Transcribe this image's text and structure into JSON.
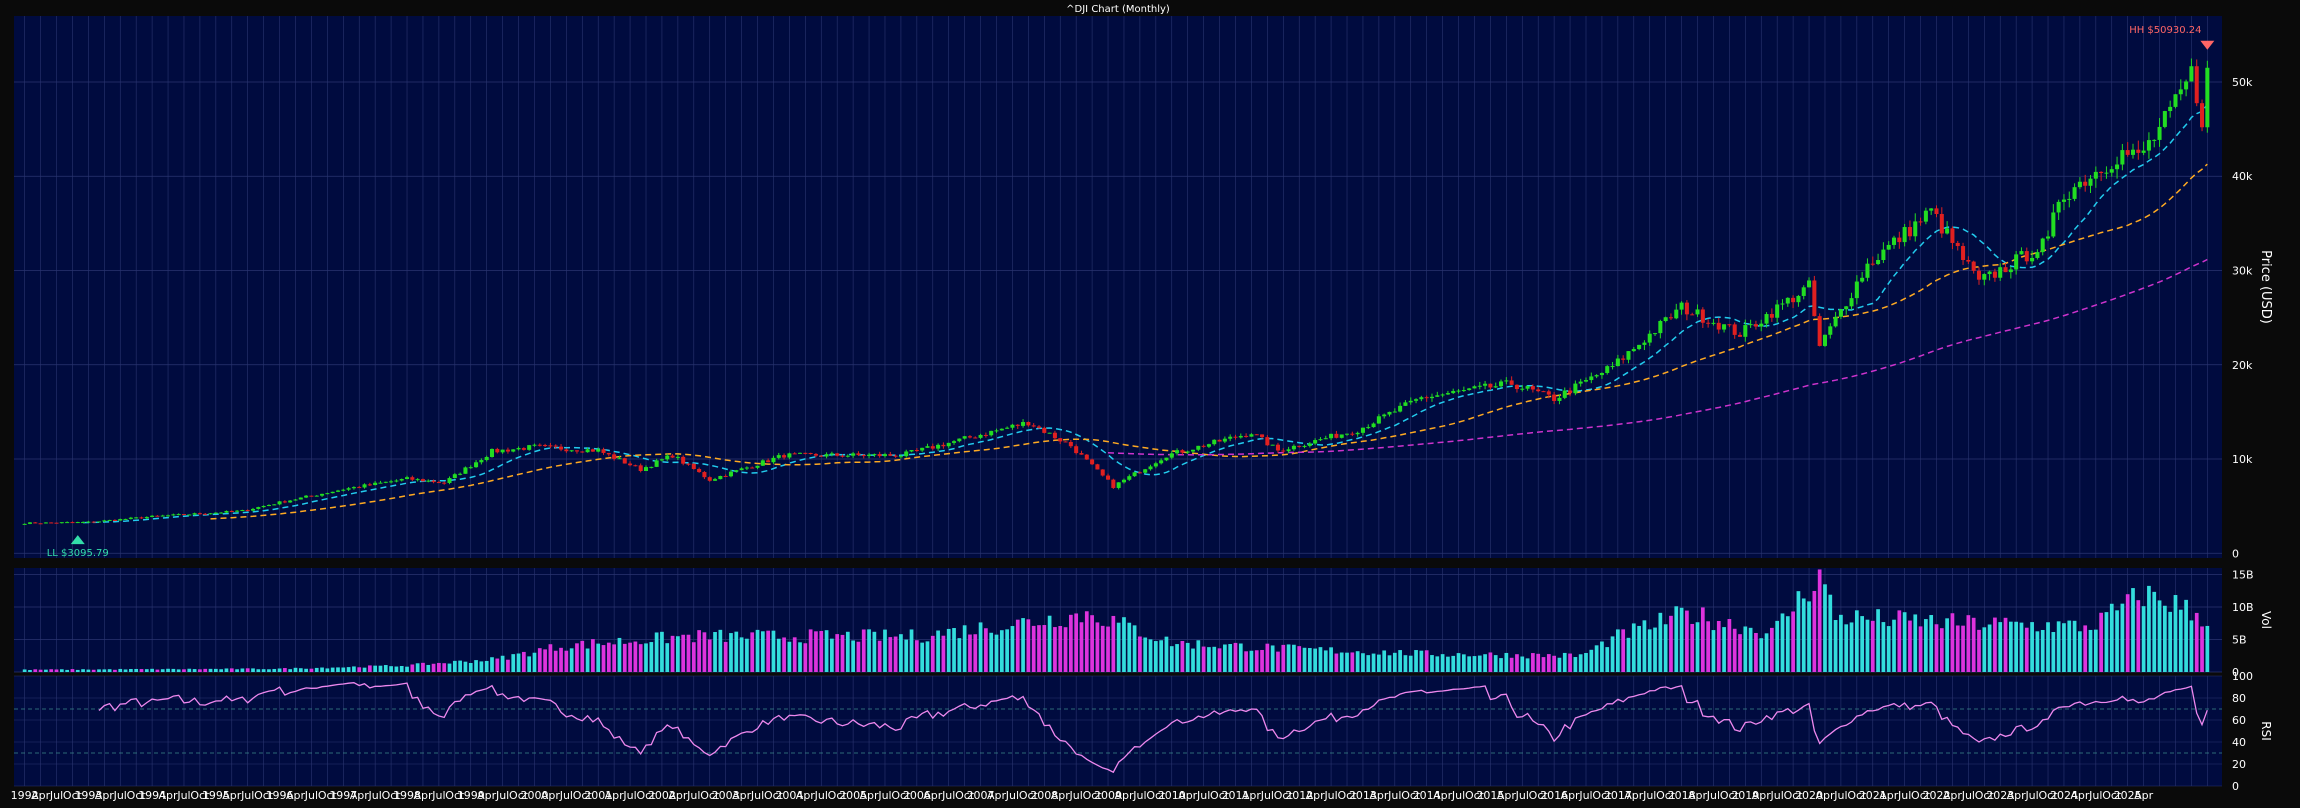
{
  "title": "^DJI Chart (Monthly)",
  "colors": {
    "background": "#0a0a0a",
    "panel": "#000b3f",
    "grid": "#2a3570",
    "up": "#22dd22",
    "down": "#e02020",
    "ma_short": "#22ccee",
    "ma_mid": "#ffaa22",
    "ma_long": "#cc33cc",
    "vol_up": "#33dddd",
    "vol_down": "#dd33dd",
    "rsi": "#ee88ee",
    "hh": "#ff6666",
    "ll": "#33ddaa",
    "text": "#ffffff"
  },
  "chart_data": [
    {
      "type": "candlestick",
      "title": "^DJI Chart (Monthly)",
      "ylabel": "Price (USD)",
      "x_start": "1992-01",
      "x_end": "2025-04",
      "ylim": [
        -500,
        57000
      ],
      "yticks": [
        0,
        10000,
        20000,
        30000,
        40000,
        50000
      ],
      "ytick_labels": [
        "0",
        "10k",
        "20k",
        "30k",
        "40k",
        "50k"
      ],
      "xtick_labels": [
        "1992",
        "Apr",
        "Jul",
        "Oct",
        "1993",
        "Apr",
        "Jul",
        "Oct",
        "1994",
        "Apr",
        "Jul",
        "Oct",
        "1995",
        "Apr",
        "Jul",
        "Oct",
        "1996",
        "Apr",
        "Jul",
        "Oct",
        "1997",
        "Apr",
        "Jul",
        "Oct",
        "1998",
        "Apr",
        "Jul",
        "Oct",
        "1999",
        "Apr",
        "Jul",
        "Oct",
        "2000",
        "Apr",
        "Jul",
        "Oct",
        "2001",
        "Apr",
        "Jul",
        "Oct",
        "2002",
        "Apr",
        "Jul",
        "Oct",
        "2003",
        "Apr",
        "Jul",
        "Oct",
        "2004",
        "Apr",
        "Jul",
        "Oct",
        "2005",
        "Apr",
        "Jul",
        "Oct",
        "2006",
        "Apr",
        "Jul",
        "Oct",
        "2007",
        "Apr",
        "Jul",
        "Oct",
        "2008",
        "Apr",
        "Jul",
        "Oct",
        "2009",
        "Apr",
        "Jul",
        "Oct",
        "2010",
        "Apr",
        "Jul",
        "Oct",
        "2011",
        "Apr",
        "Jul",
        "Oct",
        "2012",
        "Apr",
        "Jul",
        "Oct",
        "2013",
        "Apr",
        "Jul",
        "Oct",
        "2014",
        "Apr",
        "Jul",
        "Oct",
        "2015",
        "Apr",
        "Jul",
        "Oct",
        "2016",
        "Apr",
        "Jul",
        "Oct",
        "2017",
        "Apr",
        "Jul",
        "Oct",
        "2018",
        "Apr",
        "Jul",
        "Oct",
        "2019",
        "Apr",
        "Jul",
        "Oct",
        "2020",
        "Apr",
        "Jul",
        "Oct",
        "2021",
        "Apr",
        "Jul",
        "Oct",
        "2022",
        "Apr",
        "Jul",
        "Oct",
        "2023",
        "Apr",
        "Jul",
        "Oct",
        "2024",
        "Apr",
        "Jul",
        "Oct",
        "2025",
        "Apr"
      ],
      "close_anchors": [
        [
          "1992-01",
          3200
        ],
        [
          "1993-01",
          3300
        ],
        [
          "1994-01",
          3900
        ],
        [
          "1995-06",
          4500
        ],
        [
          "1996-01",
          5400
        ],
        [
          "1997-01",
          6800
        ],
        [
          "1998-01",
          7900
        ],
        [
          "1998-08",
          7500
        ],
        [
          "1999-05",
          10800
        ],
        [
          "2000-01",
          11300
        ],
        [
          "2001-01",
          10900
        ],
        [
          "2001-09",
          8900
        ],
        [
          "2002-03",
          10400
        ],
        [
          "2002-10",
          7800
        ],
        [
          "2003-12",
          10400
        ],
        [
          "2005-10",
          10400
        ],
        [
          "2007-10",
          13900
        ],
        [
          "2008-06",
          11400
        ],
        [
          "2009-02",
          7100
        ],
        [
          "2009-12",
          10400
        ],
        [
          "2011-04",
          12800
        ],
        [
          "2011-09",
          10900
        ],
        [
          "2012-12",
          13100
        ],
        [
          "2013-12",
          16500
        ],
        [
          "2015-05",
          18000
        ],
        [
          "2016-01",
          16400
        ],
        [
          "2016-12",
          19800
        ],
        [
          "2018-01",
          26100
        ],
        [
          "2018-12",
          23300
        ],
        [
          "2020-01",
          28300
        ],
        [
          "2020-03",
          21900
        ],
        [
          "2020-12",
          30600
        ],
        [
          "2021-12",
          36300
        ],
        [
          "2022-09",
          28700
        ],
        [
          "2023-10",
          33000
        ],
        [
          "2023-12",
          37700
        ],
        [
          "2024-12",
          42500
        ],
        [
          "2025-03",
          42000
        ],
        [
          "2025-06",
          44100
        ],
        [
          "2025-10",
          47600
        ],
        [
          "2026-01",
          50900
        ],
        [
          "2026-03",
          46200
        ],
        [
          "2026-04",
          50930
        ]
      ],
      "moving_averages": [
        {
          "window_months": 12
        },
        {
          "window_months": 36
        },
        {
          "window_months": 120
        }
      ],
      "annotations": [
        {
          "label": "HH $50930.24",
          "value": 50930.24,
          "marker": "down-triangle"
        },
        {
          "label": "LL $3095.79",
          "value": 3095.79,
          "marker": "up-triangle"
        }
      ]
    },
    {
      "type": "bar",
      "ylabel": "Vol",
      "ylim": [
        0,
        16000000000
      ],
      "yticks": [
        0,
        5000000000,
        10000000000,
        15000000000
      ],
      "ytick_labels": [
        "0",
        "5B",
        "10B",
        "15B"
      ],
      "volume_anchors": [
        [
          "1992-01",
          0.35
        ],
        [
          "1996-01",
          0.5
        ],
        [
          "1998-01",
          1.0
        ],
        [
          "1999-06",
          2.0
        ],
        [
          "2000-06",
          4.0
        ],
        [
          "2002-06",
          5.5
        ],
        [
          "2006-01",
          5.5
        ],
        [
          "2008-10",
          9.0
        ],
        [
          "2010-01",
          4.5
        ],
        [
          "2012-01",
          3.5
        ],
        [
          "2014-01",
          2.8
        ],
        [
          "2016-06",
          2.5
        ],
        [
          "2017-01",
          5.5
        ],
        [
          "2018-02",
          9.0
        ],
        [
          "2019-06",
          6.0
        ],
        [
          "2020-03",
          15.0
        ],
        [
          "2020-06",
          8.5
        ],
        [
          "2022-06",
          7.5
        ],
        [
          "2024-06",
          7.0
        ],
        [
          "2025-04",
          12.0
        ],
        [
          "2025-10",
          10.5
        ],
        [
          "2026-04",
          8.0
        ]
      ],
      "volume_unit": "billions"
    },
    {
      "type": "line",
      "ylabel": "RSI",
      "ylim": [
        0,
        100
      ],
      "yticks": [
        0,
        20,
        40,
        60,
        80,
        100
      ],
      "ytick_labels": [
        "0",
        "20",
        "40",
        "60",
        "80",
        "100"
      ],
      "window_months": 14
    }
  ]
}
